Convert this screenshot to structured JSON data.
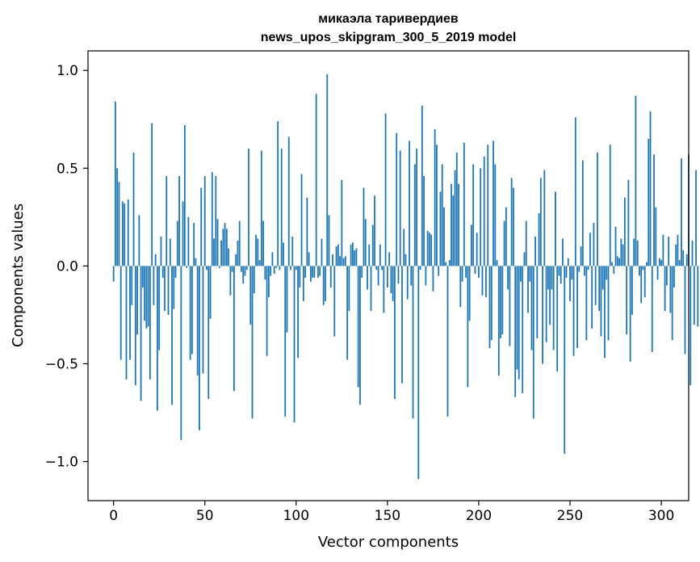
{
  "chart_data": {
    "type": "bar",
    "title": "микаэла таривердиев",
    "subtitle": "news_upos_skipgram_300_5_2019 model",
    "xlabel": "Vector components",
    "ylabel": "Components values",
    "xlim": [
      -14,
      315
    ],
    "ylim": [
      -1.2,
      1.1
    ],
    "x_ticks": [
      0,
      50,
      100,
      150,
      200,
      250,
      300
    ],
    "x_tick_labels": [
      "0",
      "50",
      "100",
      "150",
      "200",
      "250",
      "300"
    ],
    "y_ticks": [
      -1.0,
      -0.5,
      0.0,
      0.5,
      1.0
    ],
    "y_tick_labels": [
      "−1.0",
      "−0.5",
      "0.0",
      "0.5",
      "1.0"
    ],
    "grid": false,
    "bar_color": "#1f77b4",
    "values": [
      -0.08,
      0.84,
      0.5,
      0.43,
      -0.48,
      0.33,
      0.32,
      -0.58,
      0.34,
      -0.48,
      -0.2,
      0.58,
      -0.61,
      -0.35,
      0.26,
      -0.69,
      -0.11,
      -0.28,
      -0.32,
      -0.31,
      -0.58,
      0.73,
      -0.2,
      0.06,
      -0.74,
      -0.43,
      0.15,
      -0.06,
      -0.23,
      0.46,
      -0.25,
      0.14,
      -0.71,
      -0.22,
      -0.06,
      0.23,
      0.46,
      -0.89,
      0.33,
      0.72,
      -0.01,
      0.25,
      -0.48,
      -0.45,
      0.22,
      0.04,
      -0.56,
      -0.84,
      0.4,
      -0.55,
      0.46,
      -0.02,
      -0.68,
      -0.27,
      0.48,
      0.14,
      0.46,
      0.24,
      -0.01,
      0.13,
      0.19,
      0.22,
      0.19,
      0.09,
      -0.15,
      -0.03,
      -0.64,
      0.06,
      0.13,
      0.23,
      -0.03,
      -0.09,
      -0.05,
      -0.02,
      0.6,
      -0.3,
      -0.78,
      -0.14,
      0.16,
      0.14,
      0.03,
      0.59,
      0.23,
      -0.07,
      -0.46,
      -0.16,
      -0.05,
      0.07,
      -0.04,
      -0.01,
      0.74,
      -0.02,
      0.6,
      0.12,
      -0.77,
      -0.34,
      0.66,
      -0.02,
      0.15,
      -0.8,
      -0.02,
      -0.47,
      -0.11,
      0.47,
      -0.18,
      -0.06,
      0.35,
      0.07,
      -0.08,
      -0.06,
      -0.06,
      0.88,
      -0.06,
      -0.05,
      0.14,
      -0.2,
      -0.18,
      0.98,
      0.26,
      -0.11,
      0.06,
      -0.36,
      0.1,
      0.11,
      0.05,
      0.44,
      0.04,
      0.05,
      -0.48,
      -0.23,
      0.11,
      0.12,
      0.08,
      0.09,
      -0.62,
      -0.71,
      -0.06,
      0.4,
      0.24,
      -0.12,
      0.11,
      -0.23,
      0.21,
      0.36,
      -0.02,
      -0.1,
      0.11,
      -0.02,
      -0.24,
      0.78,
      -0.11,
      0.07,
      -0.14,
      -0.18,
      -0.68,
      0.68,
      -0.09,
      0.59,
      -0.6,
      0.19,
      0.06,
      -0.17,
      0.64,
      -0.1,
      -0.78,
      0.52,
      0.6,
      -1.09,
      -0.02,
      0.82,
      0.46,
      -0.1,
      0.18,
      0.17,
      0.16,
      -0.13,
      0.7,
      0.62,
      -0.05,
      0.38,
      0.52,
      0.3,
      0.02,
      -0.77,
      0.03,
      0.42,
      0.36,
      0.49,
      0.58,
      0.42,
      -0.21,
      -0.08,
      0.63,
      -0.06,
      -0.62,
      -0.28,
      0.21,
      0.52,
      -0.04,
      0.17,
      -0.06,
      0.5,
      -0.15,
      0.56,
      -0.16,
      0.62,
      -0.42,
      -0.38,
      0.64,
      0.52,
      0.03,
      -0.56,
      -0.37,
      -0.35,
      0.23,
      0.3,
      -0.12,
      -0.41,
      0.45,
      0.4,
      -0.67,
      -0.53,
      -0.58,
      -0.08,
      -0.65,
      0.07,
      0.23,
      -0.24,
      -0.08,
      -0.43,
      -0.78,
      0.15,
      -0.37,
      0.27,
      0.45,
      -0.5,
      0.49,
      -0.39,
      -0.12,
      -0.3,
      -0.12,
      -0.43,
      0.38,
      -0.54,
      -0.05,
      -0.09,
      0.14,
      -0.96,
      -0.06,
      0.04,
      -0.18,
      -0.07,
      -0.46,
      0.76,
      -0.42,
      -0.03,
      0.1,
      0.54,
      -0.05,
      -0.38,
      -0.02,
      0.17,
      -0.32,
      0.22,
      -0.2,
      0.58,
      -0.23,
      -0.36,
      -0.12,
      -0.47,
      -0.07,
      -0.38,
      0.62,
      0.02,
      -0.04,
      0.2,
      0.05,
      0.04,
      0.14,
      0.11,
      0.35,
      -0.35,
      0.44,
      -0.49,
      -0.25,
      0.14,
      0.87,
      0.13,
      -0.05,
      -0.19,
      -0.02,
      -0.16,
      0.02,
      0.65,
      0.79,
      -0.44,
      0.57,
      0.3,
      -0.07,
      0.04,
      0.03,
      0.16,
      -0.23,
      -0.1,
      0.15,
      -0.24,
      -0.38,
      -0.11,
      0.11,
      0.16,
      0.03,
      0.55,
      0.08,
      -0.45,
      0.06,
      0.57,
      -0.61,
      0.13,
      -0.3,
      0.49,
      -0.31
    ]
  }
}
